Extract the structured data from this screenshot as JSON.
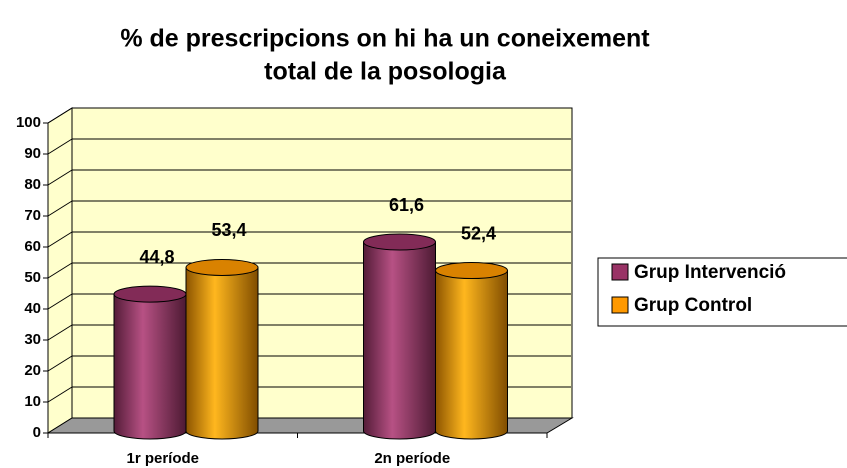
{
  "chart_data": {
    "type": "bar3d",
    "title": [
      "% de prescripcions on hi ha un coneixement",
      "total de la posologia"
    ],
    "categories": [
      "1r període",
      "2n període"
    ],
    "series": [
      {
        "name": "Grup Intervenció",
        "color": "#993366",
        "values": [
          44.8,
          61.6
        ],
        "value_labels": [
          "44,8",
          "61,6"
        ]
      },
      {
        "name": "Grup Control",
        "color": "#ff9900",
        "values": [
          53.4,
          52.4
        ],
        "value_labels": [
          "53,4",
          "52,4"
        ]
      }
    ],
    "ylim": [
      0,
      100
    ],
    "yticks": [
      0,
      10,
      20,
      30,
      40,
      50,
      60,
      70,
      80,
      90,
      100
    ],
    "grid": true,
    "legend": "right"
  }
}
